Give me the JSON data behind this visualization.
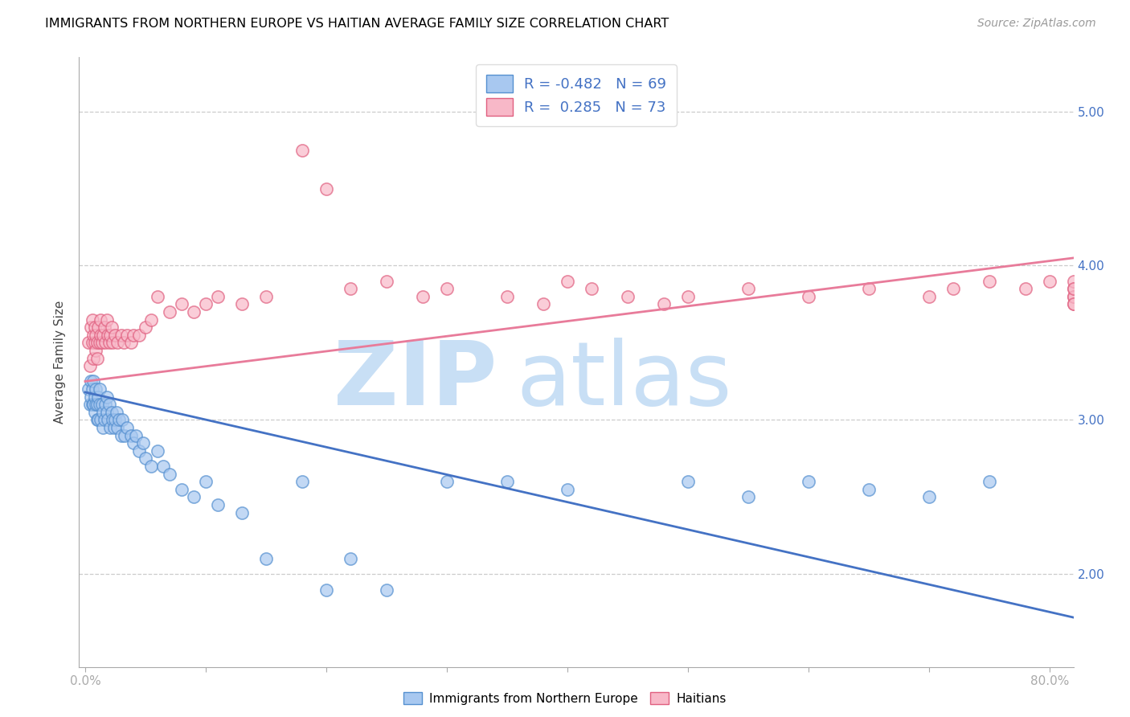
{
  "title": "IMMIGRANTS FROM NORTHERN EUROPE VS HAITIAN AVERAGE FAMILY SIZE CORRELATION CHART",
  "source": "Source: ZipAtlas.com",
  "ylabel": "Average Family Size",
  "r1": -0.482,
  "n1": 69,
  "r2": 0.285,
  "n2": 73,
  "color_blue_fill": "#A8C8F0",
  "color_blue_edge": "#5590D0",
  "color_pink_fill": "#F8B8C8",
  "color_pink_edge": "#E06080",
  "color_blue_line": "#4472C4",
  "color_pink_line": "#E87B9A",
  "watermark_text": "ZIPatlas",
  "watermark_color": "#C8DFF5",
  "legend_label_1": "Immigrants from Northern Europe",
  "legend_label_2": "Haitians",
  "ylim": [
    1.4,
    5.35
  ],
  "xlim": [
    -0.005,
    0.82
  ],
  "blue_trend_x": [
    0.0,
    0.82
  ],
  "blue_trend_y": [
    3.18,
    1.72
  ],
  "pink_trend_x": [
    0.0,
    0.82
  ],
  "pink_trend_y": [
    3.25,
    4.05
  ],
  "blue_x": [
    0.003,
    0.004,
    0.005,
    0.005,
    0.006,
    0.006,
    0.007,
    0.007,
    0.008,
    0.008,
    0.009,
    0.009,
    0.01,
    0.01,
    0.011,
    0.011,
    0.012,
    0.012,
    0.013,
    0.014,
    0.015,
    0.015,
    0.016,
    0.017,
    0.018,
    0.018,
    0.019,
    0.02,
    0.021,
    0.022,
    0.023,
    0.024,
    0.025,
    0.026,
    0.027,
    0.028,
    0.03,
    0.031,
    0.033,
    0.035,
    0.038,
    0.04,
    0.042,
    0.045,
    0.048,
    0.05,
    0.055,
    0.06,
    0.065,
    0.07,
    0.08,
    0.09,
    0.1,
    0.11,
    0.13,
    0.15,
    0.18,
    0.2,
    0.22,
    0.25,
    0.3,
    0.35,
    0.4,
    0.5,
    0.55,
    0.6,
    0.65,
    0.7,
    0.75
  ],
  "blue_y": [
    3.2,
    3.1,
    3.15,
    3.25,
    3.1,
    3.2,
    3.1,
    3.25,
    3.05,
    3.15,
    3.1,
    3.2,
    3.1,
    3.0,
    3.15,
    3.0,
    3.1,
    3.2,
    3.0,
    3.1,
    3.05,
    2.95,
    3.0,
    3.1,
    3.05,
    3.15,
    3.0,
    3.1,
    2.95,
    3.05,
    3.0,
    2.95,
    3.0,
    3.05,
    2.95,
    3.0,
    2.9,
    3.0,
    2.9,
    2.95,
    2.9,
    2.85,
    2.9,
    2.8,
    2.85,
    2.75,
    2.7,
    2.8,
    2.7,
    2.65,
    2.55,
    2.5,
    2.6,
    2.45,
    2.4,
    2.1,
    2.6,
    1.9,
    2.1,
    1.9,
    2.6,
    2.6,
    2.55,
    2.6,
    2.5,
    2.6,
    2.55,
    2.5,
    2.6
  ],
  "pink_x": [
    0.003,
    0.004,
    0.005,
    0.006,
    0.006,
    0.007,
    0.007,
    0.008,
    0.008,
    0.009,
    0.009,
    0.01,
    0.01,
    0.011,
    0.012,
    0.013,
    0.013,
    0.014,
    0.015,
    0.016,
    0.017,
    0.018,
    0.019,
    0.02,
    0.021,
    0.022,
    0.023,
    0.025,
    0.027,
    0.03,
    0.032,
    0.035,
    0.038,
    0.04,
    0.045,
    0.05,
    0.055,
    0.06,
    0.07,
    0.08,
    0.09,
    0.1,
    0.11,
    0.13,
    0.15,
    0.18,
    0.2,
    0.22,
    0.25,
    0.28,
    0.3,
    0.35,
    0.38,
    0.4,
    0.42,
    0.45,
    0.48,
    0.5,
    0.55,
    0.6,
    0.65,
    0.7,
    0.72,
    0.75,
    0.78,
    0.8,
    0.82,
    0.82,
    0.82,
    0.82,
    0.82,
    0.82,
    0.82
  ],
  "pink_y": [
    3.5,
    3.35,
    3.6,
    3.5,
    3.65,
    3.4,
    3.55,
    3.5,
    3.6,
    3.45,
    3.55,
    3.4,
    3.5,
    3.6,
    3.5,
    3.55,
    3.65,
    3.5,
    3.55,
    3.6,
    3.5,
    3.65,
    3.55,
    3.5,
    3.55,
    3.6,
    3.5,
    3.55,
    3.5,
    3.55,
    3.5,
    3.55,
    3.5,
    3.55,
    3.55,
    3.6,
    3.65,
    3.8,
    3.7,
    3.75,
    3.7,
    3.75,
    3.8,
    3.75,
    3.8,
    4.75,
    4.5,
    3.85,
    3.9,
    3.8,
    3.85,
    3.8,
    3.75,
    3.9,
    3.85,
    3.8,
    3.75,
    3.8,
    3.85,
    3.8,
    3.85,
    3.8,
    3.85,
    3.9,
    3.85,
    3.9,
    3.8,
    3.75,
    3.85,
    3.9,
    3.8,
    3.85,
    3.75
  ]
}
